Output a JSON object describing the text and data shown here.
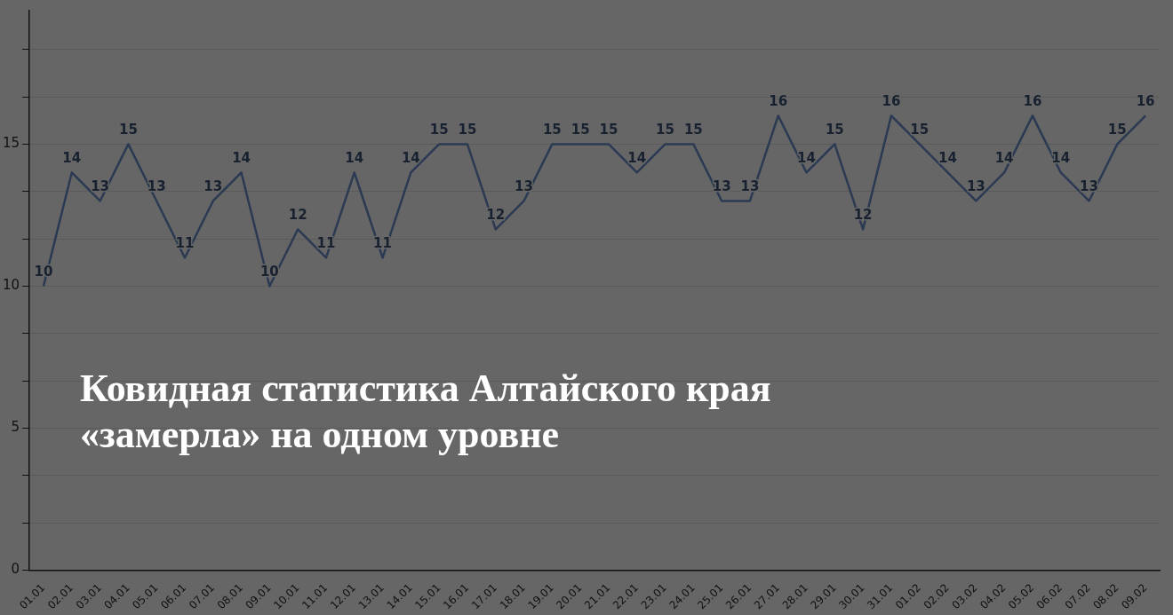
{
  "chart_data": {
    "type": "line",
    "title": "Ковидная статистика Алтайского края «замерла» на одном уровне",
    "categories": [
      "01.01",
      "02.01",
      "03.01",
      "04.01",
      "05.01",
      "06.01",
      "07.01",
      "08.01",
      "09.01",
      "10.01",
      "11.01",
      "12.01",
      "13.01",
      "14.01",
      "15.01",
      "16.01",
      "17.01",
      "18.01",
      "19.01",
      "20.01",
      "21.01",
      "22.01",
      "23.01",
      "24.01",
      "25.01",
      "26.01",
      "27.01",
      "28.01",
      "29.01",
      "30.01",
      "31.01",
      "01.02",
      "02.02",
      "03.02",
      "04.02",
      "05.02",
      "06.02",
      "07.02",
      "08.02",
      "09.02"
    ],
    "series": [
      {
        "color": "#2b3a52",
        "values": [
          10,
          14,
          13,
          15,
          13,
          11,
          13,
          14,
          10,
          12,
          11,
          14,
          11,
          14,
          15,
          15,
          12,
          13,
          15,
          15,
          15,
          14,
          15,
          15,
          13,
          13,
          16,
          14,
          15,
          12,
          16,
          15,
          14,
          13,
          14,
          16,
          14,
          13,
          15,
          16
        ]
      }
    ],
    "ylim": [
      0,
      19.7
    ],
    "yticks": [
      0,
      {
        "value": 1.667,
        "label": null
      },
      {
        "value": 3.333,
        "label": null
      },
      5,
      {
        "value": 6.667,
        "label": null
      },
      {
        "value": 8.333,
        "label": null
      },
      10,
      {
        "value": 11.667,
        "label": null
      },
      {
        "value": 13.333,
        "label": null
      },
      15,
      {
        "value": 16.667,
        "label": null
      },
      {
        "value": 18.333,
        "label": null
      }
    ],
    "grid": "y",
    "legend": false,
    "marker": "none",
    "line_style": "solid",
    "data_labels": true
  }
}
